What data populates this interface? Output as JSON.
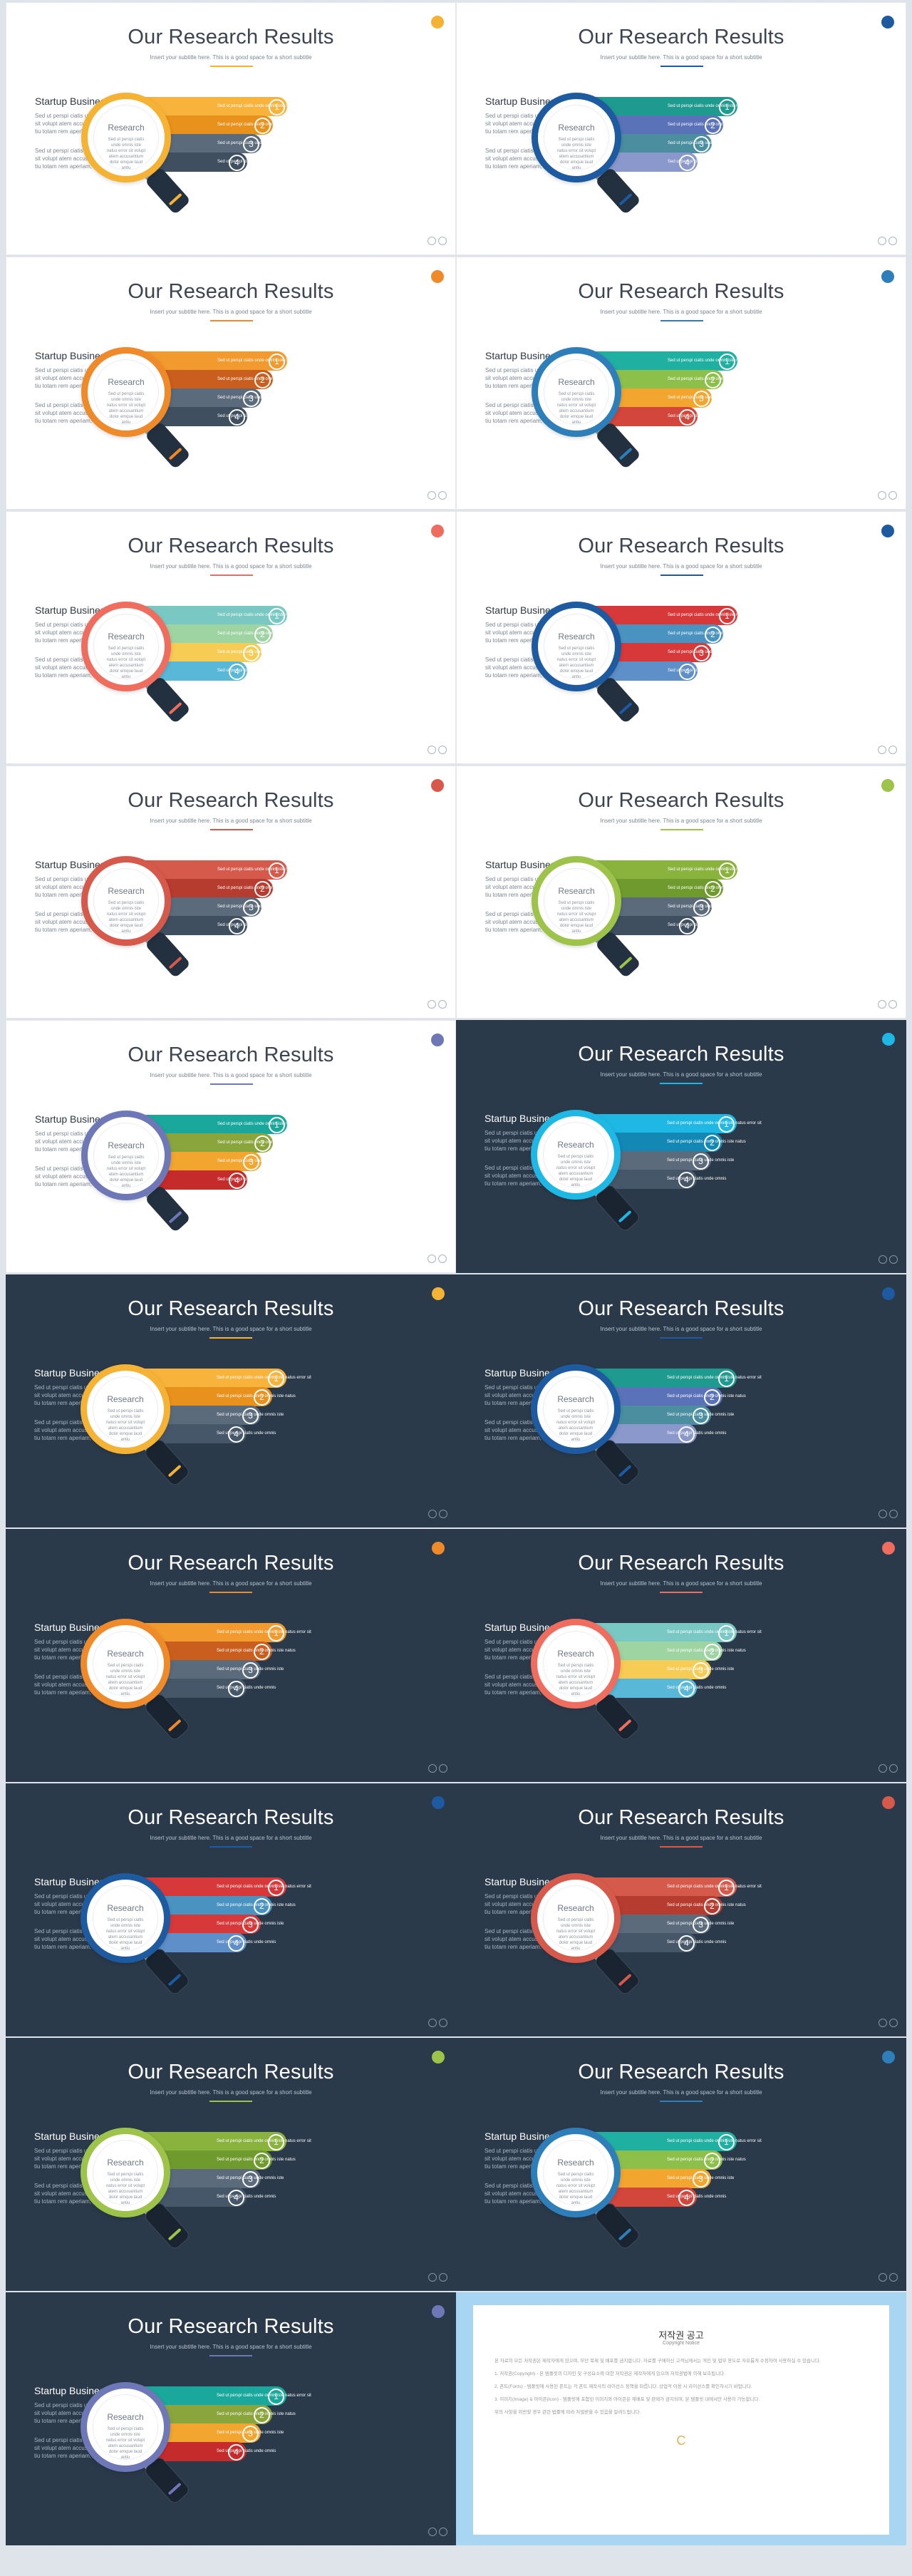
{
  "slide_common": {
    "title": "Our Research Results",
    "subtitle": "Insert your subtitle here. This is a good space for a short subtitle",
    "side_heading": "Startup Business",
    "side_paragraph_1": "Sed ut perspi ciatis unde omnis iste natus err or sit volupt atem accusantium dolor emque laud an tiu totam rem aperiam, eaque ipsa. Dolor vitae.",
    "side_paragraph_2": "Sed ut perspi ciatis unde omnis iste natus err or sit volupt atem accusantium dolor emque laud an tiu totam rem aperiam, eaque ipsa. Dolor vitae.",
    "lens_word": "Research",
    "lens_text": "Sed ut perspi ciatis unde omnis iste natus error sit volupt atem accusantium dolor emque laud antiu",
    "bar_texts": [
      "Sed ut perspi ciatis unde omnis iste natus error sit",
      "Sed ut perspi ciatis unde omnis iste natus",
      "Sed ut perspi ciatis unde omnis iste",
      "Sed ut perspi ciatis unde omnis"
    ],
    "bar_numbers": [
      "1",
      "2",
      "3",
      "4"
    ]
  },
  "slides": [
    {
      "theme": "light",
      "ring": "#f5b335",
      "bars": [
        "#f7b33b",
        "#e9911d",
        "#5b6b7b",
        "#3f4f60"
      ]
    },
    {
      "theme": "light",
      "ring": "#1d5aa0",
      "bars": [
        "#1f9a8f",
        "#5a72b8",
        "#4a8ea0",
        "#8a98cc"
      ]
    },
    {
      "theme": "light",
      "ring": "#ef8a2a",
      "bars": [
        "#f29a2d",
        "#c95e1e",
        "#5b6b7b",
        "#3f4f60"
      ]
    },
    {
      "theme": "light",
      "ring": "#2e7fb9",
      "bars": [
        "#1fb0a2",
        "#8dc04b",
        "#f2a52f",
        "#d2463c"
      ]
    },
    {
      "theme": "light",
      "ring": "#ef6d5f",
      "bars": [
        "#79c8c3",
        "#9ed3a2",
        "#f6cc54",
        "#59b8d8"
      ]
    },
    {
      "theme": "light",
      "ring": "#1d5aa0",
      "bars": [
        "#d7393a",
        "#4a93c1",
        "#d7393a",
        "#5f8fc8"
      ]
    },
    {
      "theme": "light",
      "ring": "#d55a4b",
      "bars": [
        "#d55a4b",
        "#b63c30",
        "#5b6b7b",
        "#3f4f60"
      ]
    },
    {
      "theme": "light",
      "ring": "#9dc34a",
      "bars": [
        "#8ab33e",
        "#6f9b2e",
        "#5b6b7b",
        "#3f4f60"
      ]
    },
    {
      "theme": "light",
      "ring": "#6e78b6",
      "bars": [
        "#1aa89c",
        "#8aa53c",
        "#f2a52f",
        "#c62b2b"
      ]
    },
    {
      "theme": "dark",
      "ring": "#1fb7e3",
      "bars": [
        "#1fb7e3",
        "#1388b4",
        "#5b6b7b",
        "#47576a"
      ]
    },
    {
      "theme": "dark",
      "ring": "#f5b335",
      "bars": [
        "#f7b33b",
        "#e9911d",
        "#5b6b7b",
        "#47576a"
      ]
    },
    {
      "theme": "dark",
      "ring": "#1d5aa0",
      "bars": [
        "#1f9a8f",
        "#5a72b8",
        "#4a8ea0",
        "#8a98cc"
      ]
    },
    {
      "theme": "dark",
      "ring": "#ef8a2a",
      "bars": [
        "#f29a2d",
        "#c95e1e",
        "#5b6b7b",
        "#47576a"
      ]
    },
    {
      "theme": "dark",
      "ring": "#ef6d5f",
      "bars": [
        "#79c8c3",
        "#9ed3a2",
        "#f6cc54",
        "#59b8d8"
      ]
    },
    {
      "theme": "dark",
      "ring": "#1d5aa0",
      "bars": [
        "#d7393a",
        "#4a93c1",
        "#d7393a",
        "#5f8fc8"
      ]
    },
    {
      "theme": "dark",
      "ring": "#d55a4b",
      "bars": [
        "#d55a4b",
        "#b63c30",
        "#5b6b7b",
        "#47576a"
      ]
    },
    {
      "theme": "dark",
      "ring": "#9dc34a",
      "bars": [
        "#8ab33e",
        "#6f9b2e",
        "#5b6b7b",
        "#47576a"
      ]
    },
    {
      "theme": "dark",
      "ring": "#2e7fb9",
      "bars": [
        "#1fb0a2",
        "#8dc04b",
        "#f2a52f",
        "#d2463c"
      ]
    },
    {
      "theme": "dark",
      "ring": "#6e78b6",
      "bars": [
        "#1aa89c",
        "#8aa53c",
        "#f2a52f",
        "#c62b2b"
      ]
    }
  ],
  "copyright": {
    "title": "저작권 공고",
    "subtitle": "Copyright Notice",
    "paragraphs": [
      "본 자료의 모든 저작권은 제작자에게 있으며, 무단 복제 및 배포를 금지합니다. 자료를 구매하신 고객님께서는 개인 및 업무 용도로 자유롭게 수정하여 사용하실 수 있습니다.",
      "1. 저작권(Copyright) - 본 템플릿의 디자인 및 구성요소에 대한 저작권은 제작자에게 있으며 저작권법에 의해 보호됩니다.",
      "2. 폰트(Fonts) - 템플릿에 사용된 폰트는 각 폰트 제작사의 라이선스 정책을 따릅니다. 상업적 이용 시 라이선스를 확인하시기 바랍니다.",
      "3. 이미지(Image) & 아이콘(Icon) - 템플릿에 포함된 이미지와 아이콘은 재배포 및 판매가 금지되며, 본 템플릿 내에서만 사용이 가능합니다.",
      "위의 사항을 위반할 경우 관련 법률에 따라 처벌받을 수 있음을 알려드립니다."
    ],
    "logo": "C"
  }
}
